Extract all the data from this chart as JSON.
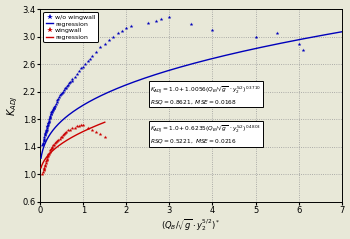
{
  "xlim": [
    0,
    7
  ],
  "ylim": [
    0.6,
    3.4
  ],
  "xticks": [
    0,
    1,
    2,
    3,
    4,
    5,
    6,
    7
  ],
  "yticks": [
    0.6,
    1.0,
    1.4,
    1.8,
    2.2,
    2.6,
    3.0,
    3.4
  ],
  "wo_wingwall_x": [
    0.05,
    0.06,
    0.07,
    0.08,
    0.09,
    0.1,
    0.1,
    0.11,
    0.12,
    0.12,
    0.13,
    0.14,
    0.14,
    0.15,
    0.16,
    0.16,
    0.17,
    0.18,
    0.18,
    0.19,
    0.2,
    0.2,
    0.21,
    0.22,
    0.23,
    0.24,
    0.25,
    0.25,
    0.26,
    0.27,
    0.28,
    0.29,
    0.3,
    0.31,
    0.32,
    0.33,
    0.35,
    0.36,
    0.38,
    0.4,
    0.42,
    0.44,
    0.46,
    0.48,
    0.5,
    0.52,
    0.55,
    0.58,
    0.6,
    0.63,
    0.65,
    0.68,
    0.7,
    0.73,
    0.75,
    0.8,
    0.85,
    0.9,
    0.95,
    1.0,
    1.05,
    1.1,
    1.15,
    1.2,
    1.3,
    1.4,
    1.5,
    1.6,
    1.7,
    1.8,
    1.9,
    2.0,
    2.1,
    2.5,
    2.7,
    2.8,
    3.0,
    3.5,
    4.0,
    5.0,
    5.5,
    6.0,
    6.1
  ],
  "wo_wingwall_y": [
    1.42,
    1.44,
    1.46,
    1.48,
    1.5,
    1.52,
    1.55,
    1.57,
    1.58,
    1.6,
    1.62,
    1.63,
    1.65,
    1.65,
    1.67,
    1.7,
    1.7,
    1.72,
    1.74,
    1.75,
    1.76,
    1.78,
    1.8,
    1.82,
    1.84,
    1.85,
    1.87,
    1.88,
    1.9,
    1.9,
    1.92,
    1.93,
    1.95,
    1.96,
    1.97,
    1.98,
    2.0,
    2.02,
    2.05,
    2.08,
    2.1,
    2.12,
    2.15,
    2.17,
    2.18,
    2.2,
    2.22,
    2.25,
    2.26,
    2.28,
    2.3,
    2.32,
    2.34,
    2.36,
    2.38,
    2.42,
    2.46,
    2.5,
    2.54,
    2.56,
    2.6,
    2.64,
    2.68,
    2.72,
    2.78,
    2.85,
    2.9,
    2.95,
    3.0,
    3.05,
    3.08,
    3.12,
    3.16,
    3.2,
    3.22,
    3.25,
    3.28,
    3.18,
    3.1,
    3.0,
    3.05,
    2.9,
    2.8
  ],
  "wingwall_x": [
    0.05,
    0.07,
    0.08,
    0.09,
    0.1,
    0.11,
    0.12,
    0.13,
    0.14,
    0.15,
    0.16,
    0.17,
    0.18,
    0.19,
    0.2,
    0.22,
    0.24,
    0.25,
    0.27,
    0.28,
    0.3,
    0.32,
    0.35,
    0.37,
    0.4,
    0.42,
    0.45,
    0.48,
    0.5,
    0.53,
    0.55,
    0.58,
    0.6,
    0.65,
    0.7,
    0.75,
    0.8,
    0.85,
    0.9,
    0.95,
    1.0,
    1.1,
    1.2,
    1.3,
    1.4,
    1.5
  ],
  "wingwall_y": [
    1.0,
    1.03,
    1.06,
    1.08,
    1.1,
    1.12,
    1.14,
    1.17,
    1.19,
    1.21,
    1.23,
    1.25,
    1.27,
    1.29,
    1.3,
    1.33,
    1.35,
    1.37,
    1.39,
    1.4,
    1.42,
    1.43,
    1.45,
    1.47,
    1.49,
    1.5,
    1.52,
    1.54,
    1.55,
    1.57,
    1.58,
    1.6,
    1.62,
    1.64,
    1.65,
    1.67,
    1.68,
    1.7,
    1.7,
    1.72,
    1.72,
    1.68,
    1.65,
    1.62,
    1.58,
    1.55
  ],
  "blue_color": "#0000bb",
  "red_color": "#cc0000",
  "bg_color": "#e8e8d8",
  "grid_color": "#999999"
}
